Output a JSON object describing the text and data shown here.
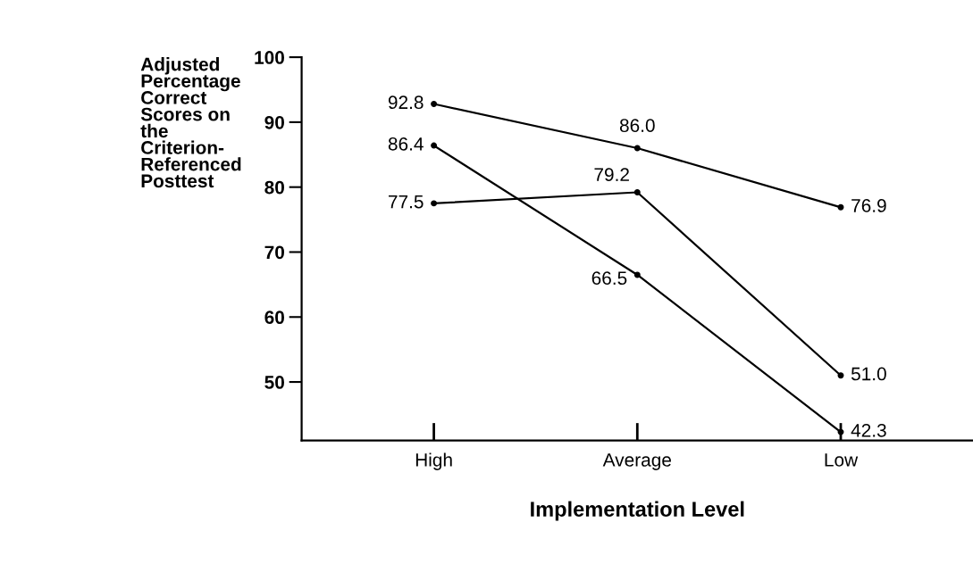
{
  "chart_data": {
    "type": "line",
    "ylabel": "Adjusted\nPercentage\nCorrect\nScores on\nthe\nCriterion-\nReferenced\nPosttest",
    "xlabel": "Implementation Level",
    "categories": [
      "High",
      "Average",
      "Low"
    ],
    "series": [
      {
        "color": "#000000",
        "values": [
          92.8,
          86.0,
          76.9
        ],
        "value_labels": [
          "92.8",
          "86.0",
          "76.9"
        ]
      },
      {
        "color": "#000000",
        "values": [
          77.5,
          79.2,
          51.0
        ],
        "value_labels": [
          "77.5",
          "79.2",
          "51.0"
        ]
      },
      {
        "color": "#000000",
        "values": [
          86.4,
          66.5,
          42.3
        ],
        "value_labels": [
          "86.4",
          "66.5",
          "42.3"
        ]
      }
    ],
    "ylim": [
      41,
      100
    ],
    "yticks": [
      50,
      60,
      70,
      80,
      90,
      100
    ],
    "marker": "circle",
    "line_style": "solid",
    "grid": false,
    "legend": false
  }
}
